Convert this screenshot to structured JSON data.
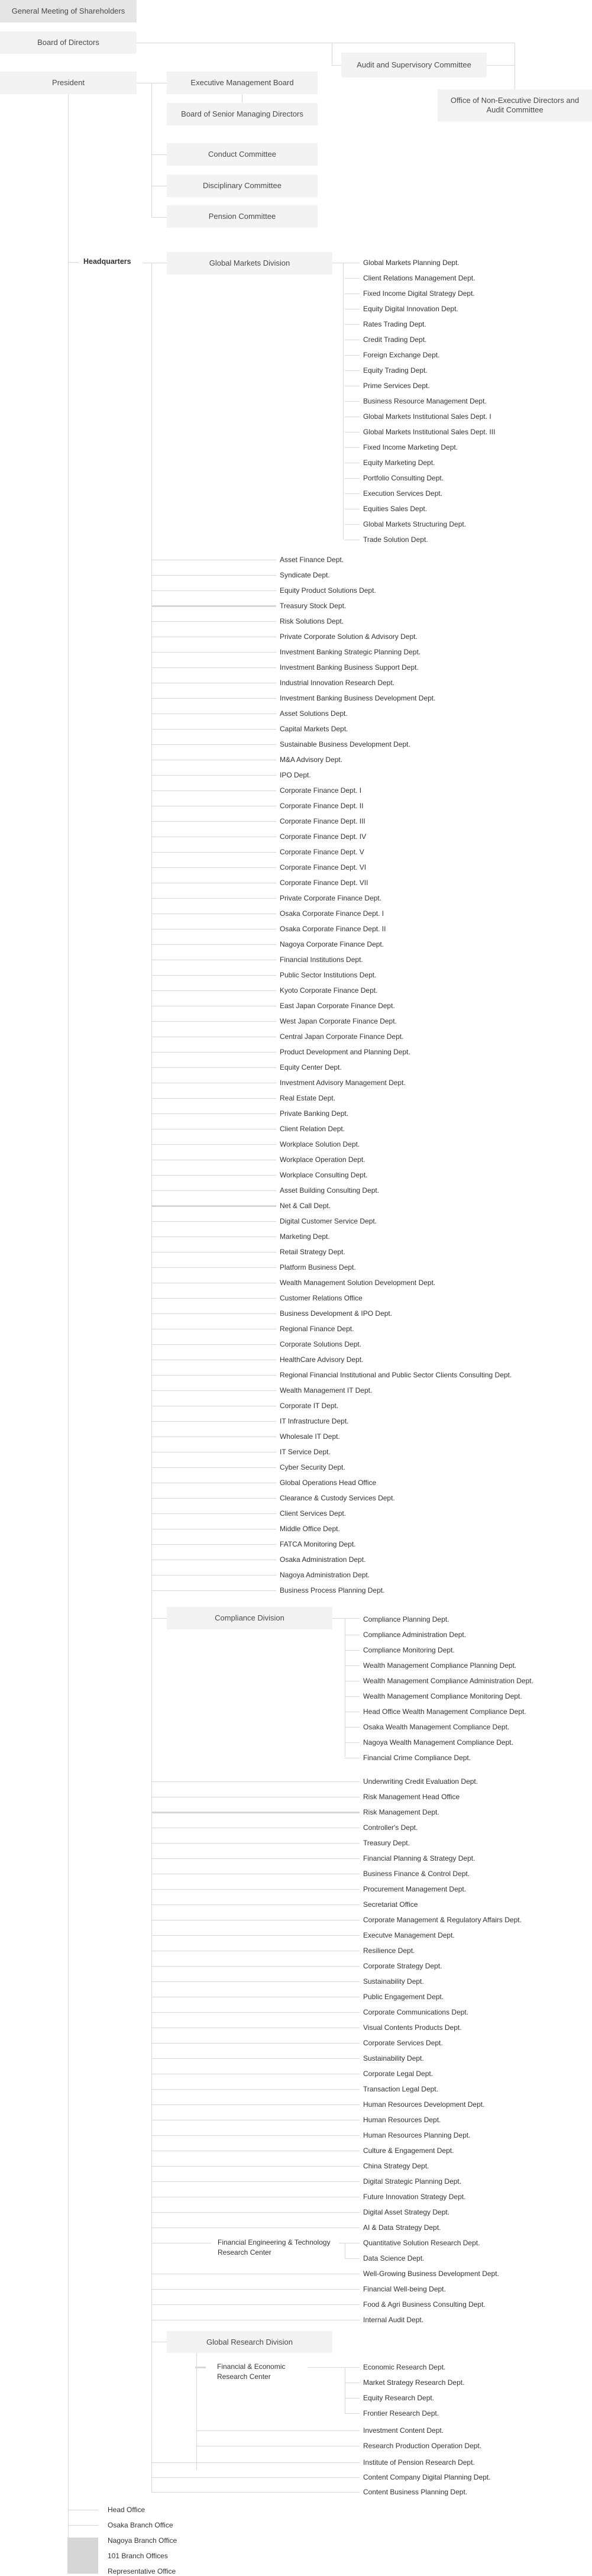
{
  "top": {
    "general_meeting": "General Meeting of Shareholders",
    "board_of_directors": "Board of Directors",
    "audit_committee": "Audit and Supervisory Committee",
    "office_non_exec": "Office of Non-Executive Directors and Audit Committee",
    "president": "President",
    "executive_management_board": "Executive Management Board",
    "board_senior_managing": "Board of Senior Managing Directors",
    "committees": [
      "Conduct Committee",
      "Disciplinary Committee",
      "Pension Committee"
    ],
    "headquarters": "Headquarters"
  },
  "global_markets": {
    "title": "Global Markets Division",
    "depts": [
      "Global Markets Planning Dept.",
      "Client Relations Management Dept.",
      "Fixed Income Digital Strategy Dept.",
      "Equity Digital Innovation Dept.",
      "Rates Trading Dept.",
      "Credit Trading Dept.",
      "Foreign Exchange Dept.",
      "Equity Trading Dept.",
      "Prime Services Dept.",
      "Business Resource Management Dept.",
      "Global Markets Institutional Sales Dept. I",
      "Global Markets Institutional Sales Dept. III",
      "Fixed Income Marketing Dept.",
      "Equity Marketing Dept.",
      "Portfolio Consulting Dept.",
      "Execution Services Dept.",
      "Equities Sales Dept.",
      "Global Markets Structuring Dept.",
      "Trade Solution Dept."
    ]
  },
  "hq_depts_1": [
    "Asset Finance Dept.",
    "Syndicate Dept.",
    "Equity Product Solutions Dept.",
    "Treasury Stock Dept.",
    "Risk Solutions Dept.",
    "Private Corporate Solution & Advisory Dept.",
    "Investment Banking Strategic Planning Dept.",
    "Investment Banking Business Support Dept.",
    "Industrial Innovation Research Dept.",
    "Investment Banking Business Development Dept.",
    "Asset Solutions Dept.",
    "Capital Markets Dept.",
    "Sustainable Business Development Dept.",
    "M&A Advisory Dept.",
    "IPO Dept.",
    "Corporate Finance Dept. I",
    "Corporate Finance Dept. II",
    "Corporate Finance Dept. III",
    "Corporate Finance Dept. IV",
    "Corporate Finance Dept. V",
    "Corporate Finance Dept. VI",
    "Corporate Finance Dept. VII",
    "Private Corporate Finance Dept.",
    "Osaka Corporate Finance Dept. I",
    "Osaka Corporate Finance Dept. II",
    "Nagoya Corporate Finance Dept.",
    "Financial Institutions Dept.",
    "Public Sector Institutions Dept.",
    "Kyoto Corporate Finance Dept.",
    "East Japan Corporate Finance Dept.",
    "West Japan Corporate Finance Dept.",
    "Central Japan Corporate Finance Dept.",
    "Product Development and Planning Dept.",
    "Equity Center Dept.",
    "Investment Advisory Management Dept.",
    "Real Estate Dept.",
    "Private Banking Dept.",
    "Client Relation Dept.",
    "Workplace Solution Dept.",
    "Workplace Operation Dept.",
    "Workplace Consulting Dept.",
    "Asset Building Consulting Dept.",
    "Net & Call Dept.",
    "Digital Customer Service Dept.",
    "Marketing Dept.",
    "Retail Strategy Dept.",
    "Platform Business Dept.",
    "Wealth Management Solution Development Dept.",
    "Customer Relations Office",
    "Business Development & IPO Dept.",
    "Regional Finance Dept.",
    "Corporate Solutions Dept.",
    "HealthCare Advisory Dept.",
    "Regional Financial Institutional and Public Sector Clients Consulting Dept.",
    "Wealth Management IT Dept.",
    "Corporate IT Dept.",
    "IT Infrastructure Dept.",
    "Wholesale IT Dept.",
    "IT Service Dept.",
    "Cyber Security Dept.",
    "Global Operations Head Office",
    "Clearance & Custody Services Dept.",
    "Client Services Dept.",
    "Middle Office Dept.",
    "FATCA Monitoring Dept.",
    "Osaka Administration Dept.",
    "Nagoya Administration Dept.",
    "Business Process Planning Dept."
  ],
  "compliance": {
    "title": "Compliance Division",
    "depts": [
      "Compliance Planning Dept.",
      "Compliance Administration Dept.",
      "Compliance Monitoring Dept.",
      "Wealth Management Compliance Planning Dept.",
      "Wealth Management Compliance Administration Dept.",
      "Wealth Management Compliance Monitoring Dept.",
      "Head Office Wealth Management Compliance Dept.",
      "Osaka Wealth Management Compliance Dept.",
      "Nagoya Wealth Management Compliance Dept.",
      "Financial Crime Compliance Dept."
    ]
  },
  "hq_depts_2": [
    "Underwriting Credit Evaluation Dept.",
    "Risk Management Head Office",
    "Risk Management Dept.",
    "Controller's Dept.",
    "Treasury Dept.",
    "Financial Planning & Strategy Dept.",
    "Business Finance & Control Dept.",
    "Procurement Management Dept.",
    "Secretariat Office",
    "Corporate Management & Regulatory Affairs Dept.",
    "Executve Management Dept.",
    "Resilience Dept.",
    "Corporate Strategy Dept.",
    "Sustainability Dept.",
    "Public Engagement Dept.",
    "Corporate Communications Dept.",
    "Visual Contents Products Dept.",
    "Corporate Services Dept.",
    "Sustainability Dept.",
    "Corporate Legal Dept.",
    "Transaction Legal Dept.",
    "Human Resources Development Dept.",
    "Human Resources Dept.",
    "Human Resources Planning Dept.",
    "Culture & Engagement Dept.",
    "China Strategy Dept.",
    "Digital Strategic Planning Dept.",
    "Future Innovation Strategy Dept.",
    "Digital Asset Strategy Dept.",
    "AI & Data Strategy Dept."
  ],
  "fetrc": {
    "title": "Financial Engineering & Technology Research Center",
    "depts": [
      "Quantitative Solution Research Dept.",
      "Data Science Dept."
    ]
  },
  "hq_depts_3": [
    "Well-Growing Business Development Dept.",
    "Financial Well-being Dept.",
    "Food & Agri Business Consulting Dept.",
    "Internal Audit Dept."
  ],
  "global_research": {
    "title": "Global Research Division",
    "ferc": {
      "title": "Financial & Economic Research Center",
      "depts": [
        "Economic Research Dept.",
        "Market Strategy Research Dept.",
        "Equity Research Dept.",
        "Frontier Research Dept."
      ]
    },
    "depts": [
      "Investment Content Dept.",
      "Research Production Operation Dept."
    ]
  },
  "hq_depts_4": [
    "Institute of Pension Research Dept.",
    "Content Company Digital Planning Dept.",
    "Content Business Planning Dept."
  ],
  "offices": [
    "Head Office",
    "Osaka Branch Office",
    "Nagoya Branch Office",
    "101 Branch Offices",
    "Representative Office"
  ],
  "colors": {
    "box": "#f3f3f3",
    "box_dark": "#e5e5e5",
    "line": "#d6d6d6",
    "text": "#333333"
  }
}
